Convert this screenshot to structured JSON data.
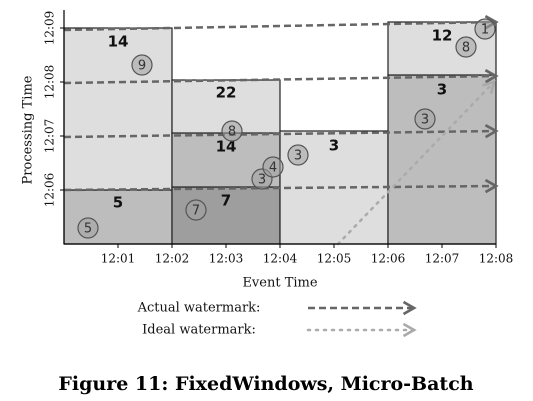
{
  "figure": {
    "y_axis": {
      "title": "Processing Time",
      "ticks": [
        "12:06",
        "12:07",
        "12:08",
        "12:09"
      ]
    },
    "x_axis": {
      "title": "Event Time",
      "ticks": [
        "12:01",
        "12:02",
        "12:03",
        "12:04",
        "12:05",
        "12:06",
        "12:07",
        "12:08"
      ]
    },
    "panes": [
      5,
      14,
      7,
      14,
      22,
      3,
      3,
      12
    ],
    "points": [
      5,
      9,
      7,
      8,
      3,
      4,
      3,
      3,
      8,
      1
    ],
    "legend": [
      "Actual watermark:",
      "Ideal watermark:"
    ],
    "caption": "Figure 11: FixedWindows, Micro-Batch"
  }
}
